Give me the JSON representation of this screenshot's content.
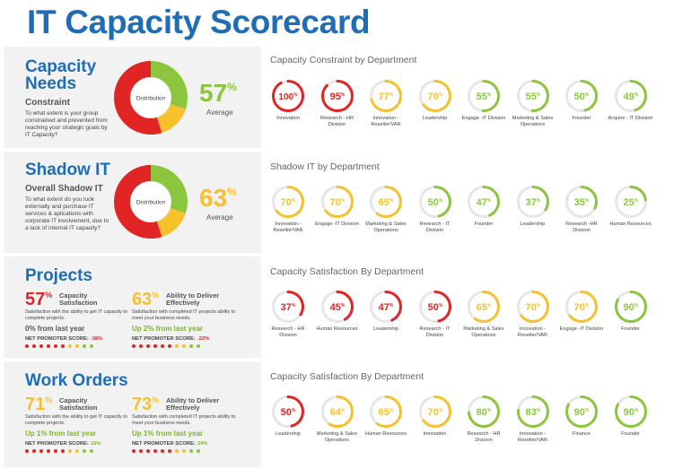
{
  "page_title": "IT Capacity Scorecard",
  "colors": {
    "red": "#e12424",
    "yellow": "#f7c12e",
    "green": "#8cc63f",
    "blue": "#1f6db5"
  },
  "capacity": {
    "title_line1": "Capacity",
    "title_line2": "Needs",
    "subtitle": "Constraint",
    "description": "To what extent is your group constrained and prevented from reaching your strategic goals by IT Capacity?",
    "donut_label": "Distribution",
    "donut": {
      "red": 0.55,
      "yellow": 0.15,
      "green": 0.3
    },
    "percent": "57",
    "average_label": "Average",
    "right_title": "Capacity Constraint by Department",
    "gauges": [
      {
        "value": 100,
        "label": "Innovation",
        "color": "red"
      },
      {
        "value": 95,
        "label": "Research - HR Division",
        "color": "red"
      },
      {
        "value": 77,
        "label": "Innovation - Reseller/VAR",
        "color": "yellow"
      },
      {
        "value": 70,
        "label": "Leadership",
        "color": "yellow"
      },
      {
        "value": 55,
        "label": "Engage -IT Division",
        "color": "green"
      },
      {
        "value": 55,
        "label": "Marketing & Sales Operations",
        "color": "green"
      },
      {
        "value": 50,
        "label": "Founder",
        "color": "green"
      },
      {
        "value": 49,
        "label": "Acquire - IT Division",
        "color": "green"
      }
    ]
  },
  "shadow": {
    "title_line1": "Shadow IT",
    "subtitle": "Overall Shadow IT",
    "description": "To what extent do you look externally and purchase IT services & aplications with corporate IT involvement, due to a lack of internal IT capacity?",
    "donut_label": "Distribution",
    "donut": {
      "red": 0.55,
      "yellow": 0.15,
      "green": 0.3
    },
    "percent": "63",
    "average_label": "Average",
    "right_title": "Shadow IT by Department",
    "gauges": [
      {
        "value": 70,
        "label": "Innovation -Reseller/VAR",
        "color": "yellow"
      },
      {
        "value": 70,
        "label": "Engage -IT Division",
        "color": "yellow"
      },
      {
        "value": 65,
        "label": "Marketing & Sales Operations",
        "color": "yellow"
      },
      {
        "value": 50,
        "label": "Research - IT Division",
        "color": "green"
      },
      {
        "value": 47,
        "label": "Founder",
        "color": "green"
      },
      {
        "value": 37,
        "label": "Leadership",
        "color": "green"
      },
      {
        "value": 35,
        "label": "Research -HR Division",
        "color": "green"
      },
      {
        "value": 25,
        "label": "Human Resources",
        "color": "green"
      }
    ]
  },
  "projects": {
    "title_line1": "Projects",
    "metric1": {
      "percent": "57",
      "label": "Capacity Satisfaction",
      "color": "red",
      "description": "Satisfaction with the ability to get IT capacity to complete projects.",
      "trend": "0% from last year",
      "trend_color": "gray",
      "nps_label": "NET PROMOTER SCORE:",
      "nps_value": "-38%",
      "nps_color": "red"
    },
    "metric2": {
      "percent": "63",
      "label": "Ability to Deliver Effectively",
      "color": "yellow",
      "description": "Satisfaction with completed IT projects ability to meet your business needs.",
      "trend": "Up 2% from last year",
      "trend_color": "green",
      "nps_label": "NET PROMOTER SCORE:",
      "nps_value": "-22%",
      "nps_color": "red"
    },
    "right_title": "Capacity Satisfaction By Department",
    "gauges": [
      {
        "value": 37,
        "label": "Research - HR Division",
        "color": "red"
      },
      {
        "value": 45,
        "label": "Human Resources",
        "color": "red"
      },
      {
        "value": 47,
        "label": "Leadership",
        "color": "red"
      },
      {
        "value": 50,
        "label": "Research - IT Division",
        "color": "red"
      },
      {
        "value": 65,
        "label": "Marketing & Sales Operations",
        "color": "yellow"
      },
      {
        "value": 70,
        "label": "Innovation - Reseller/VAR",
        "color": "yellow"
      },
      {
        "value": 70,
        "label": "Engage -IT Division",
        "color": "yellow"
      },
      {
        "value": 90,
        "label": "Founder",
        "color": "green"
      }
    ]
  },
  "workorders": {
    "title_line1": "Work Orders",
    "metric1": {
      "percent": "71",
      "label": "Capacity Satisfaction",
      "color": "yellow",
      "description": "Satisfaction with the ability to get IT capacity to complete projects.",
      "trend": "Up 1% from last year",
      "trend_color": "green",
      "nps_label": "NET PROMOTER SCORE:",
      "nps_value": "15%",
      "nps_color": "green"
    },
    "metric2": {
      "percent": "73",
      "label": "Ability to Deliver Effectively",
      "color": "yellow",
      "description": "Satisfaction with completed IT projects ability to meet your business needs.",
      "trend": "Up 1% from last year",
      "trend_color": "green",
      "nps_label": "NET PROMOTER SCORE:",
      "nps_value": "34%",
      "nps_color": "green"
    },
    "right_title": "Capacity Satisfaction By Department",
    "gauges": [
      {
        "value": 50,
        "label": "Leadership",
        "color": "red"
      },
      {
        "value": 64,
        "label": "Marketing & Sales Operations",
        "color": "yellow"
      },
      {
        "value": 65,
        "label": "Human Resources",
        "color": "yellow"
      },
      {
        "value": 70,
        "label": "Innovation",
        "color": "yellow"
      },
      {
        "value": 80,
        "label": "Research - HR Division",
        "color": "green"
      },
      {
        "value": 83,
        "label": "Innovation - Reseller/VAR",
        "color": "green"
      },
      {
        "value": 90,
        "label": "Finance",
        "color": "green"
      },
      {
        "value": 90,
        "label": "Founder",
        "color": "green"
      }
    ]
  }
}
